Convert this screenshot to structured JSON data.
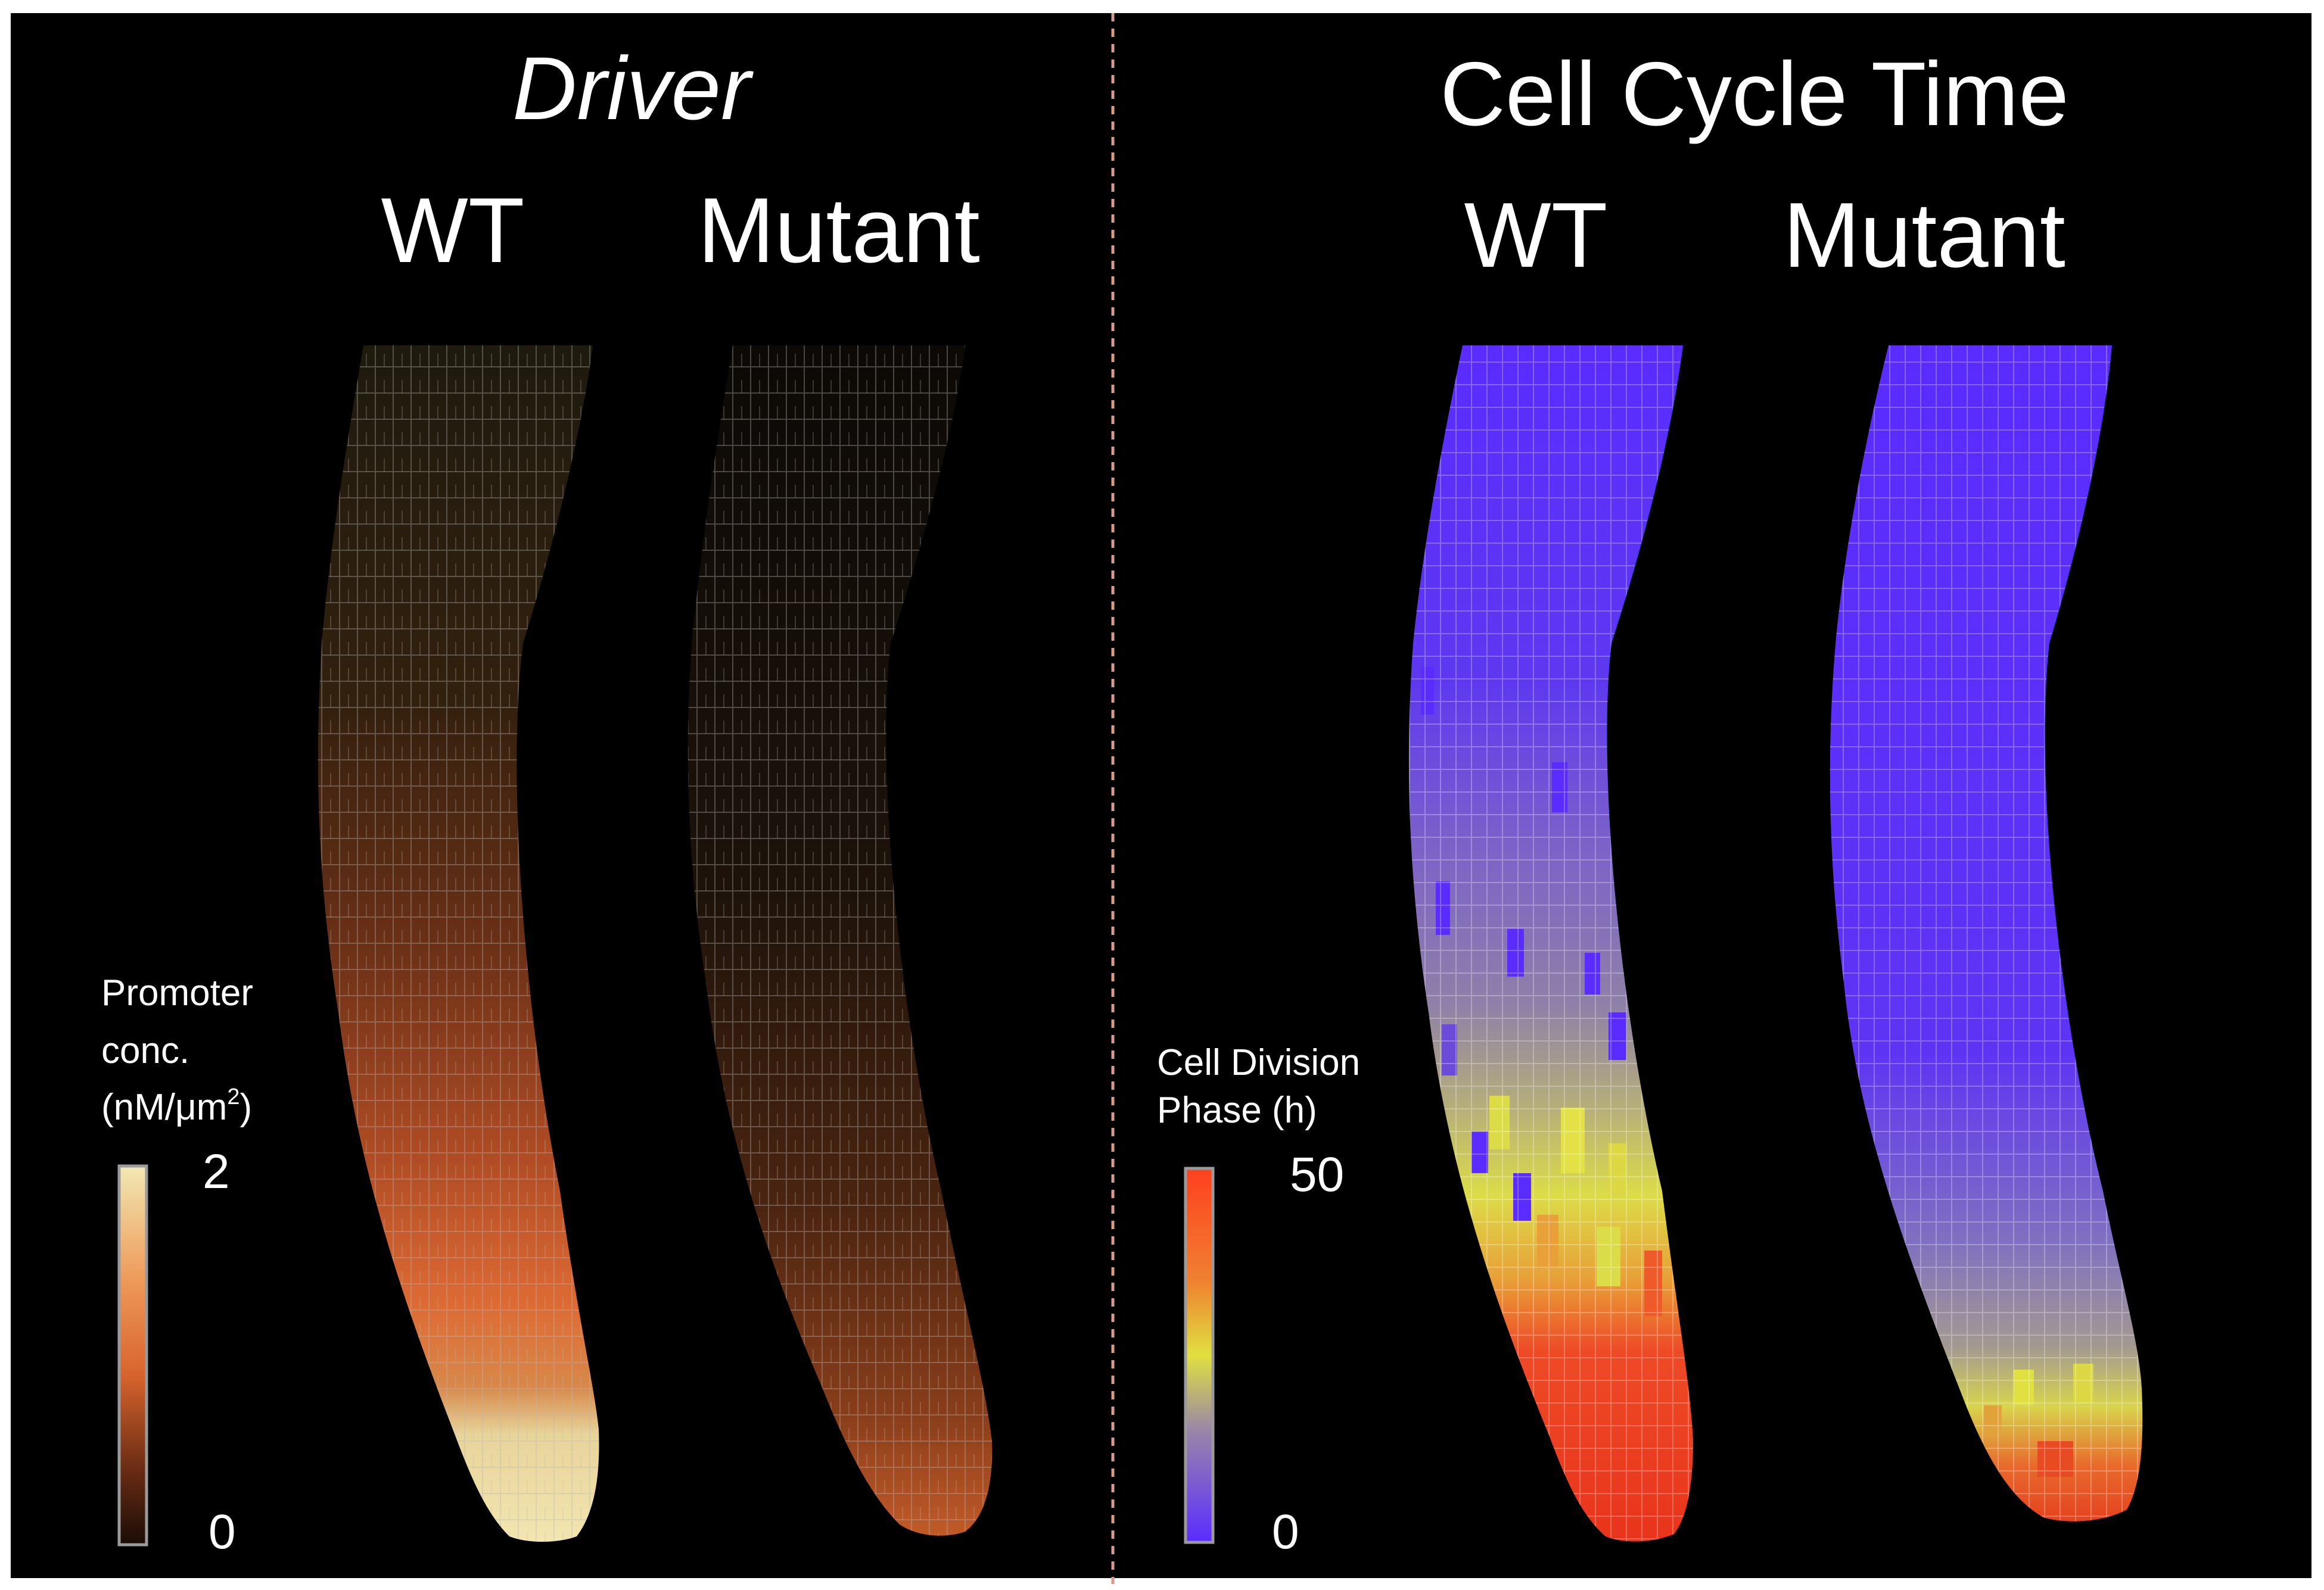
{
  "left_panel": {
    "title": "Driver",
    "columns": [
      "WT",
      "Mutant"
    ],
    "colorbar": {
      "label_lines": [
        "Promoter",
        "conc."
      ],
      "unit_prefix": "(nM/μm",
      "unit_exp": "2",
      "unit_suffix": ")",
      "max_label": "2",
      "min_label": "0",
      "colors": [
        "#f2e8b4",
        "#ee9a5a",
        "#d8642e",
        "#8a3a1c",
        "#241008"
      ]
    }
  },
  "right_panel": {
    "title": "Cell Cycle Time",
    "columns": [
      "WT",
      "Mutant"
    ],
    "colorbar": {
      "label_lines": [
        "Cell Division",
        "Phase (h)"
      ],
      "max_label": "50",
      "min_label": "0",
      "colors": [
        "#ff4020",
        "#f08030",
        "#e0e040",
        "#9a86a8",
        "#5a2cff"
      ]
    }
  },
  "colors": {
    "background": "#000000",
    "divider": "#d89a8a",
    "cell_outline": "#9a9a9a",
    "driver_low": "#1c150a",
    "driver_high": "#f0e4ac",
    "cycle_low": "#5b30ff",
    "cycle_mid": "#e0e040",
    "cycle_high": "#ff3d20"
  }
}
